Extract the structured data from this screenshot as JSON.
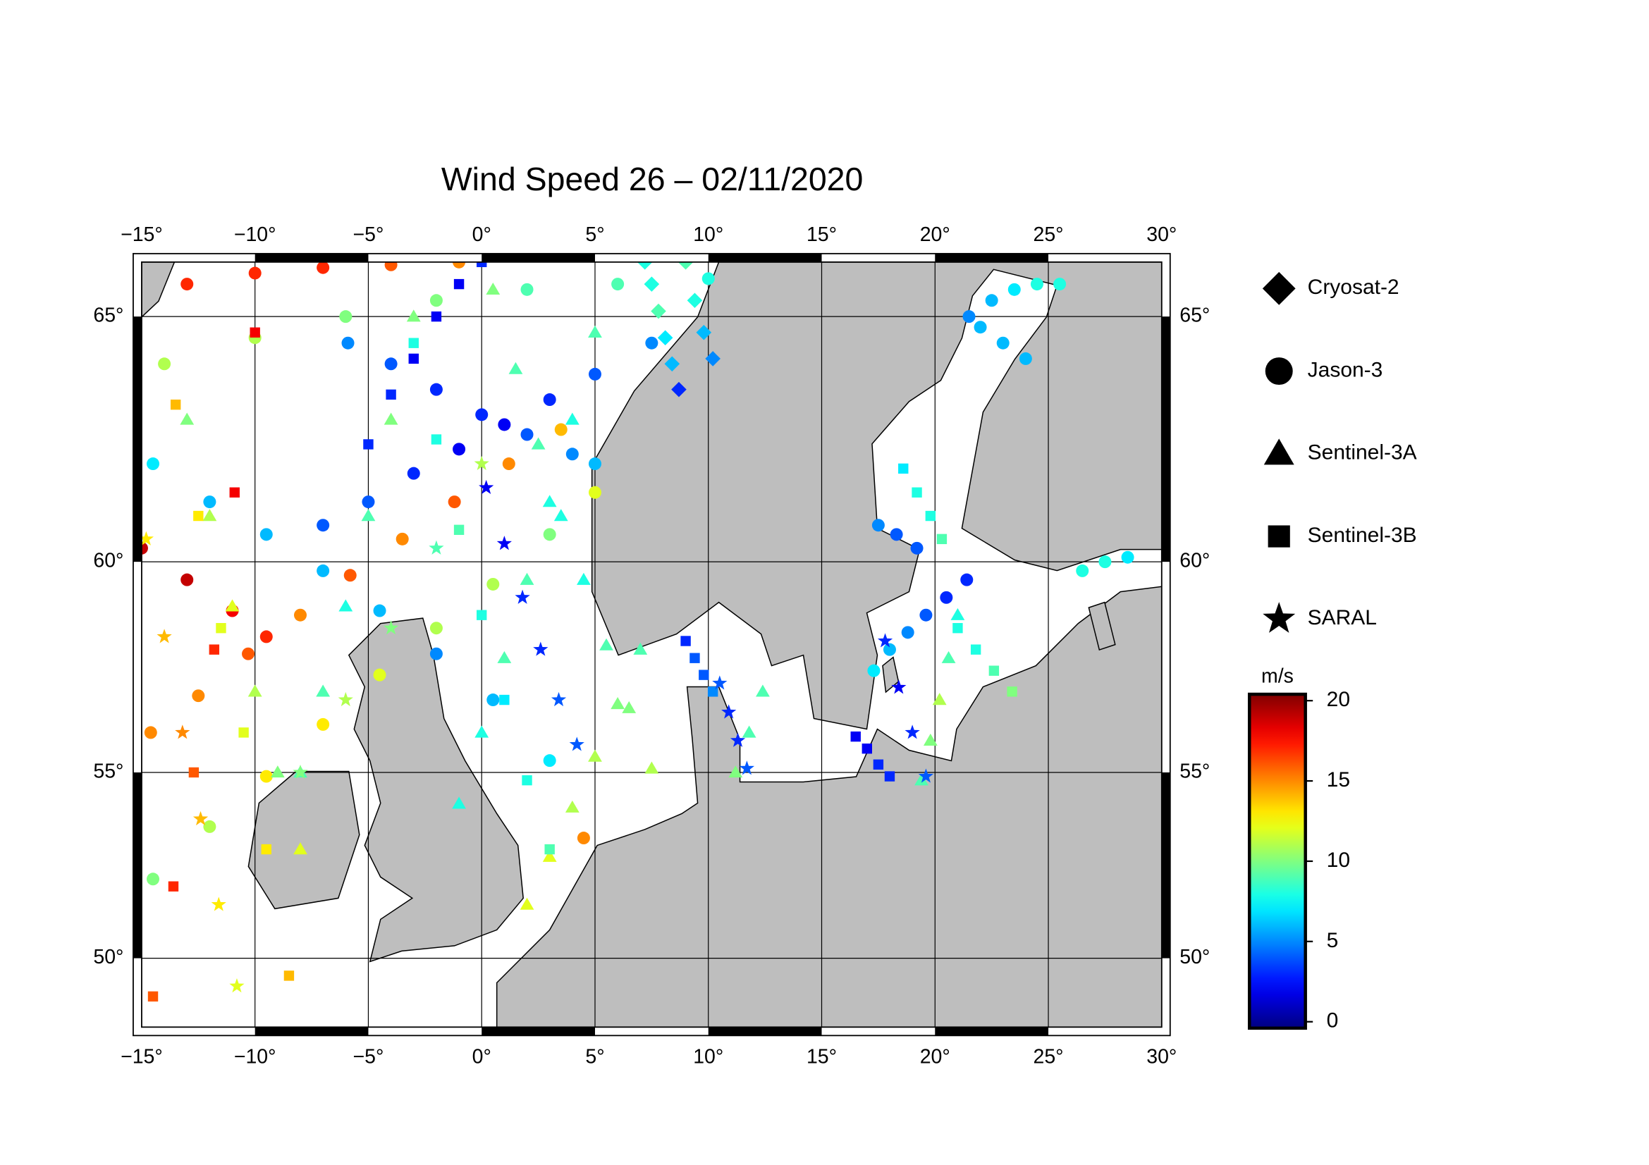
{
  "chart_data": {
    "type": "map",
    "title": "Wind Speed 26 – 02/11/2020",
    "xlim": [
      -15,
      30
    ],
    "ylim": [
      48,
      66
    ],
    "xticks": [
      {
        "value": -15,
        "label": "−15°"
      },
      {
        "value": -10,
        "label": "−10°"
      },
      {
        "value": -5,
        "label": "−5°"
      },
      {
        "value": 0,
        "label": "0°"
      },
      {
        "value": 5,
        "label": "5°"
      },
      {
        "value": 10,
        "label": "10°"
      },
      {
        "value": 15,
        "label": "15°"
      },
      {
        "value": 20,
        "label": "20°"
      },
      {
        "value": 25,
        "label": "25°"
      },
      {
        "value": 30,
        "label": "30°"
      }
    ],
    "yticks": [
      {
        "value": 50,
        "label": "50°"
      },
      {
        "value": 55,
        "label": "55°"
      },
      {
        "value": 60,
        "label": "60°"
      },
      {
        "value": 65,
        "label": "65°"
      }
    ],
    "grid": true,
    "land_color": "#bebebe",
    "colorbar": {
      "label": "m/s",
      "lim": [
        -0.4,
        20.4
      ],
      "ticks": [
        0,
        5,
        10,
        15,
        20
      ],
      "colormap": "jet"
    },
    "series": [
      {
        "name": "Cryosat-2",
        "marker": "diamond",
        "tracks": [
          {
            "lon": [
              7.2,
              7.5,
              7.8,
              8.1,
              8.4,
              8.7
            ],
            "lat": [
              66.0,
              65.6,
              65.1,
              64.6,
              64.1,
              63.6
            ],
            "values": [
              8,
              8,
              9,
              7,
              6,
              3
            ]
          },
          {
            "lon": [
              9,
              9.4,
              9.8,
              10.2
            ],
            "lat": [
              66.0,
              65.3,
              64.7,
              64.2
            ],
            "values": [
              9,
              8,
              6,
              5
            ]
          }
        ]
      },
      {
        "name": "Jason-3",
        "marker": "circle",
        "tracks": [
          {
            "lon": [
              -14.6,
              -12.5,
              -10.3,
              -8,
              -5.8,
              -3.5,
              -1.2,
              1.2,
              3.5
            ],
            "lat": [
              56.0,
              56.9,
              57.9,
              58.8,
              59.7,
              60.5,
              61.3,
              62.1,
              62.8
            ],
            "values": [
              15,
              15,
              16,
              15,
              16,
              15,
              16,
              15,
              14
            ]
          },
          {
            "lon": [
              -14.5,
              -12,
              -9.5,
              -7,
              -4.5,
              -2,
              0.5,
              3,
              5
            ],
            "lat": [
              52.2,
              53.6,
              54.9,
              56.2,
              57.4,
              58.5,
              59.5,
              60.6,
              61.5
            ],
            "values": [
              10,
              11,
              13,
              13,
              12,
              11,
              11,
              10,
              12
            ]
          },
          {
            "lon": [
              -14.5,
              -12,
              -9.5,
              -7,
              -4.5,
              -2,
              0.5,
              3,
              4.5
            ],
            "lat": [
              62.1,
              61.3,
              60.6,
              59.8,
              58.9,
              57.9,
              56.8,
              55.3,
              53.3
            ],
            "values": [
              7,
              6,
              6,
              6,
              6,
              5,
              6,
              7,
              15
            ]
          },
          {
            "lon": [
              -7,
              -5,
              -3,
              -1,
              1,
              3,
              5,
              7.5
            ],
            "lat": [
              60.8,
              61.3,
              61.9,
              62.4,
              62.9,
              63.4,
              63.9,
              64.5
            ],
            "values": [
              4,
              4,
              3,
              2,
              2,
              3,
              4,
              5
            ]
          },
          {
            "lon": [
              -5.9,
              -4,
              -2,
              0,
              2,
              4,
              5
            ],
            "lat": [
              64.5,
              64.1,
              63.6,
              63.1,
              62.7,
              62.3,
              62.1
            ],
            "values": [
              5,
              4,
              3,
              3,
              4,
              5,
              6
            ]
          },
          {
            "lon": [
              -13,
              -10,
              -7,
              -4,
              -1
            ],
            "lat": [
              65.6,
              65.8,
              65.9,
              65.95,
              66.0
            ],
            "values": [
              17,
              17,
              17,
              16,
              15
            ]
          },
          {
            "lon": [
              -14,
              -10,
              -6,
              -2,
              2,
              6,
              10
            ],
            "lat": [
              64.1,
              64.6,
              65.0,
              65.3,
              65.5,
              65.6,
              65.7
            ],
            "values": [
              11,
              11,
              10,
              10,
              9,
              9,
              8
            ]
          },
          {
            "lon": [
              -15,
              -13,
              -11,
              -9.5
            ],
            "lat": [
              60.3,
              59.6,
              58.9,
              58.3
            ],
            "values": [
              19,
              19,
              18,
              17
            ]
          },
          {
            "lon": [
              21.4,
              20.5,
              19.6,
              18.8,
              18.0,
              17.3
            ],
            "lat": [
              59.6,
              59.2,
              58.8,
              58.4,
              58.0,
              57.5
            ],
            "values": [
              3,
              3,
              4,
              5,
              6,
              7
            ]
          },
          {
            "lon": [
              17.5,
              18.3,
              19.2
            ],
            "lat": [
              60.8,
              60.6,
              60.3
            ],
            "values": [
              5,
              4,
              4
            ]
          },
          {
            "lon": [
              21.5,
              22.5,
              23.5,
              24.5,
              25.5
            ],
            "lat": [
              65.0,
              65.3,
              65.5,
              65.6,
              65.6
            ],
            "values": [
              5,
              6,
              7,
              8,
              8
            ]
          },
          {
            "lon": [
              22,
              23,
              24
            ],
            "lat": [
              64.8,
              64.5,
              64.2
            ],
            "values": [
              6,
              6,
              6
            ]
          },
          {
            "lon": [
              26.5,
              27.5,
              28.5
            ],
            "lat": [
              59.8,
              60.0,
              60.1
            ],
            "values": [
              8,
              8,
              7
            ]
          }
        ]
      },
      {
        "name": "Sentinel-3A",
        "marker": "triangle",
        "tracks": [
          {
            "lon": [
              0.5,
              1.5,
              2.5,
              3.5,
              4.5,
              5.5,
              6.5,
              7.5
            ],
            "lat": [
              65.5,
              64,
              62.5,
              61,
              59.6,
              58.1,
              56.6,
              55.1
            ],
            "values": [
              10,
              9,
              9,
              8,
              8,
              9,
              10,
              11
            ]
          },
          {
            "lon": [
              -1,
              0,
              1,
              2,
              3,
              4,
              5
            ],
            "lat": [
              54.2,
              56,
              57.8,
              59.6,
              61.3,
              63,
              64.7
            ],
            "values": [
              8,
              8,
              9,
              9,
              8,
              8,
              9
            ]
          },
          {
            "lon": [
              -13,
              -12,
              -11,
              -10,
              -9,
              -8
            ],
            "lat": [
              63,
              61,
              59,
              57,
              55,
              53
            ],
            "values": [
              10,
              11,
              12,
              11,
              10,
              12
            ]
          },
          {
            "lon": [
              -8,
              -7,
              -6,
              -5,
              -4,
              -3
            ],
            "lat": [
              55,
              57,
              59,
              61,
              63,
              65
            ],
            "values": [
              9,
              9,
              8,
              9,
              10,
              10
            ]
          },
          {
            "lon": [
              19.4,
              19.8,
              20.2,
              20.6,
              21
            ],
            "lat": [
              54.8,
              55.8,
              56.8,
              57.8,
              58.8
            ],
            "values": [
              9,
              10,
              11,
              9,
              8
            ]
          },
          {
            "lon": [
              11.2,
              11.8,
              12.4
            ],
            "lat": [
              55,
              56,
              57
            ],
            "values": [
              10,
              9,
              9
            ]
          },
          {
            "lon": [
              2,
              3,
              4,
              5,
              6,
              7
            ],
            "lat": [
              51.5,
              52.8,
              54.1,
              55.4,
              56.7,
              58
            ],
            "values": [
              12,
              12,
              11,
              11,
              10,
              9
            ]
          }
        ]
      },
      {
        "name": "Sentinel-3B",
        "marker": "square",
        "tracks": [
          {
            "lon": [
              -14.5,
              -13.6,
              -12.7,
              -11.8,
              -10.9,
              -10
            ],
            "lat": [
              48.9,
              52,
              55,
              58,
              61.5,
              64.7
            ],
            "values": [
              16,
              17,
              16,
              17,
              18,
              18
            ]
          },
          {
            "lon": [
              -13.5,
              -12.5,
              -11.5,
              -10.5,
              -9.5,
              -8.5
            ],
            "lat": [
              63.3,
              61,
              58.5,
              56,
              53,
              49.5
            ],
            "values": [
              14,
              13,
              12,
              12,
              13,
              14
            ]
          },
          {
            "lon": [
              -3,
              -2,
              -1,
              0,
              1,
              2,
              3
            ],
            "lat": [
              64.5,
              62.6,
              60.7,
              58.8,
              56.8,
              54.8,
              53
            ],
            "values": [
              8,
              8,
              9,
              8,
              7,
              8,
              9
            ]
          },
          {
            "lon": [
              -5,
              -4,
              -3,
              -2,
              -1,
              0
            ],
            "lat": [
              62.5,
              63.5,
              64.2,
              65,
              65.6,
              66
            ],
            "values": [
              3,
              3,
              2,
              2,
              2,
              3
            ]
          },
          {
            "lon": [
              16.5,
              17,
              17.5,
              18
            ],
            "lat": [
              55.9,
              55.6,
              55.2,
              54.9
            ],
            "values": [
              2,
              2,
              3,
              3
            ]
          },
          {
            "lon": [
              18.6,
              19.2,
              19.8,
              20.3
            ],
            "lat": [
              62,
              61.5,
              61,
              60.5
            ],
            "values": [
              7,
              8,
              8,
              9
            ]
          },
          {
            "lon": [
              9,
              9.4,
              9.8,
              10.2
            ],
            "lat": [
              58.2,
              57.8,
              57.4,
              57
            ],
            "values": [
              3,
              4,
              4,
              5
            ]
          },
          {
            "lon": [
              21,
              21.8,
              22.6,
              23.4
            ],
            "lat": [
              58.5,
              58,
              57.5,
              57
            ],
            "values": [
              8,
              8,
              9,
              10
            ]
          }
        ]
      },
      {
        "name": "SARAL",
        "marker": "star",
        "tracks": [
          {
            "lon": [
              0.2,
              1,
              1.8,
              2.6,
              3.4,
              4.2
            ],
            "lat": [
              61.6,
              60.4,
              59.2,
              58,
              56.8,
              55.7
            ],
            "values": [
              2,
              2,
              3,
              3,
              4,
              4
            ]
          },
          {
            "lon": [
              -14.8,
              -14,
              -13.2,
              -12.4,
              -11.6,
              -10.8
            ],
            "lat": [
              60.5,
              58.3,
              56,
              53.8,
              51.5,
              49.2
            ],
            "values": [
              13,
              14,
              15,
              14,
              13,
              12
            ]
          },
          {
            "lon": [
              10.5,
              10.9,
              11.3,
              11.7
            ],
            "lat": [
              57.2,
              56.5,
              55.8,
              55.1
            ],
            "values": [
              4,
              3,
              3,
              4
            ]
          },
          {
            "lon": [
              17.8,
              18.4,
              19,
              19.6
            ],
            "lat": [
              58.2,
              57.1,
              56,
              54.9
            ],
            "values": [
              3,
              2,
              3,
              4
            ]
          },
          {
            "lon": [
              -8,
              -6,
              -4,
              -2,
              0
            ],
            "lat": [
              55,
              56.8,
              58.5,
              60.3,
              62.1
            ],
            "values": [
              10,
              11,
              10,
              9,
              11
            ]
          }
        ]
      }
    ]
  }
}
